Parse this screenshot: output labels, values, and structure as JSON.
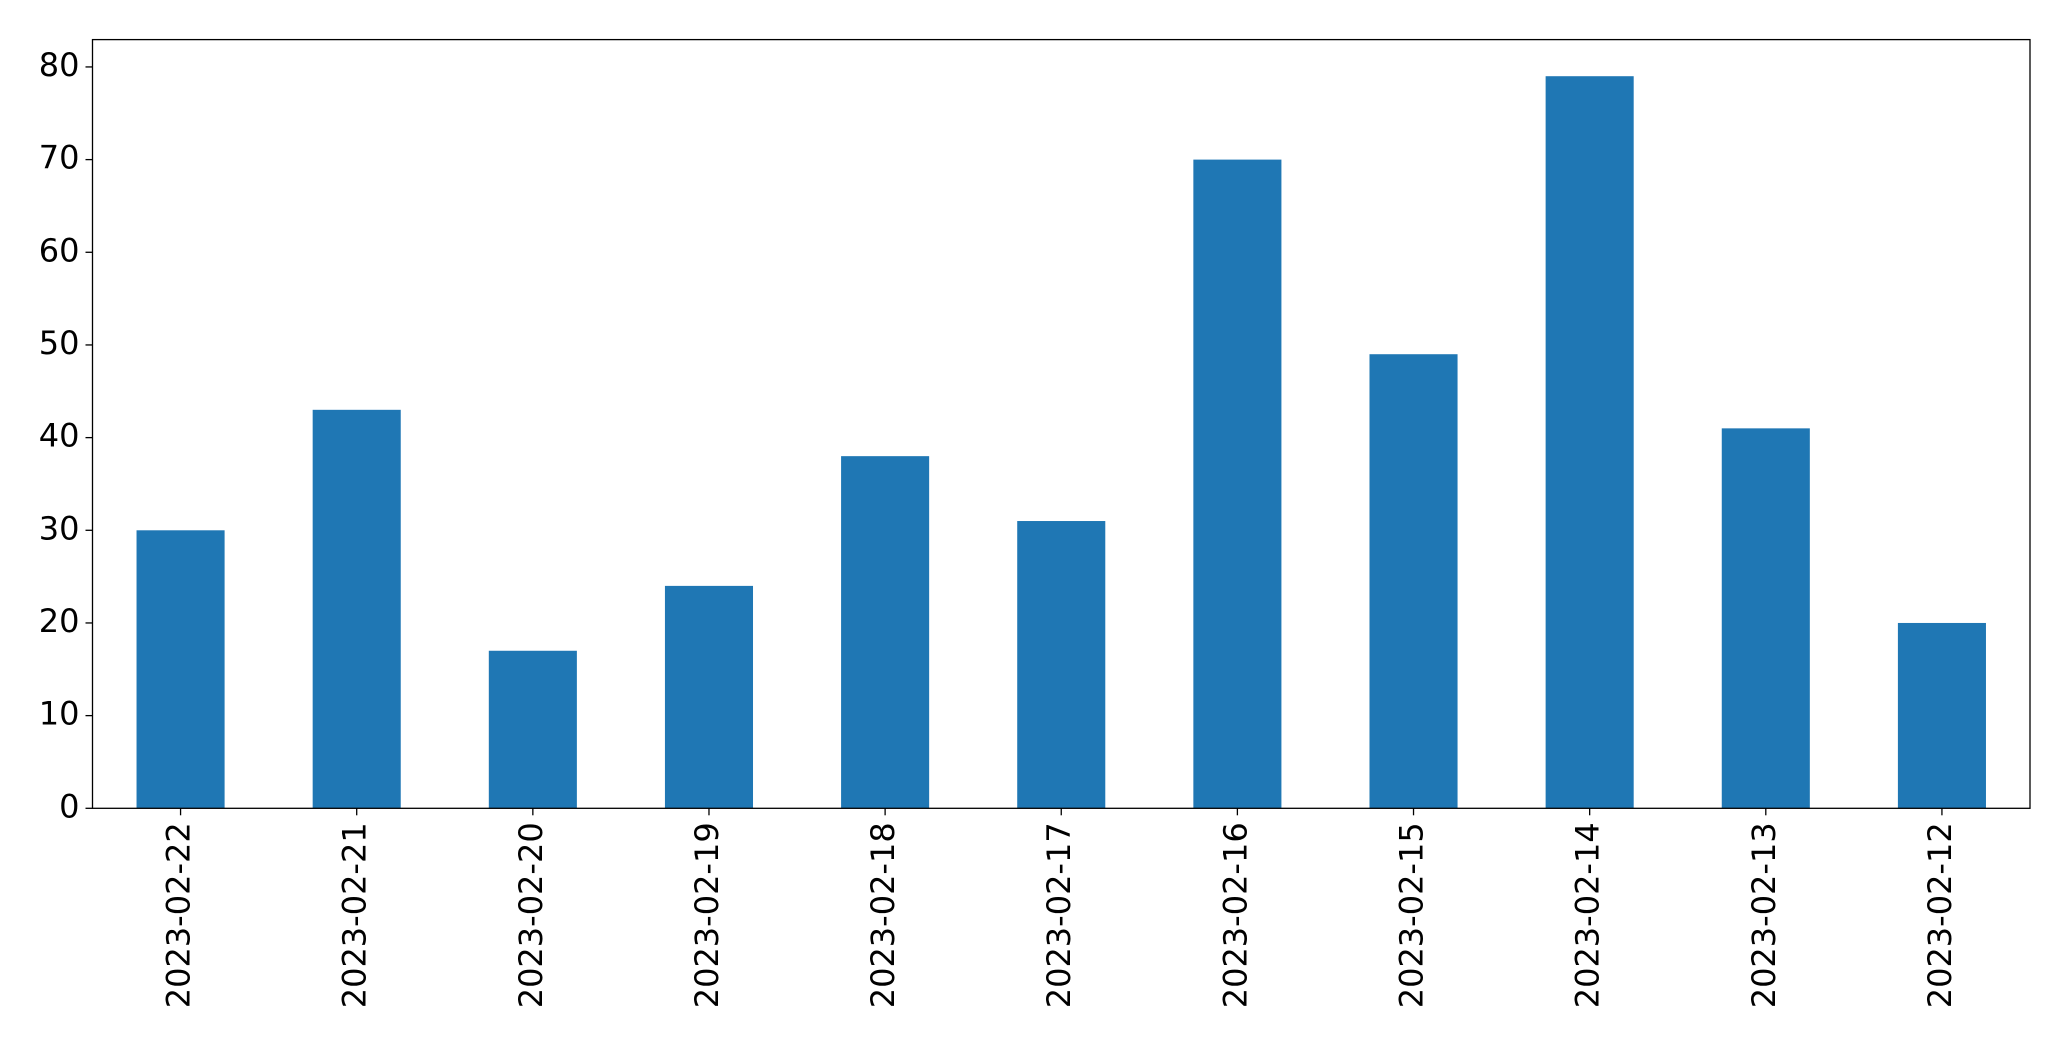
{
  "chart_data": {
    "type": "bar",
    "categories": [
      "2023-02-22",
      "2023-02-21",
      "2023-02-20",
      "2023-02-19",
      "2023-02-18",
      "2023-02-17",
      "2023-02-16",
      "2023-02-15",
      "2023-02-14",
      "2023-02-13",
      "2023-02-12"
    ],
    "values": [
      30,
      43,
      17,
      24,
      38,
      31,
      70,
      49,
      79,
      41,
      20
    ],
    "color": "#1f77b4",
    "ylim": [
      0,
      82.95
    ],
    "yticks": [
      0,
      10,
      20,
      30,
      40,
      50,
      60,
      70,
      80
    ],
    "grid": false
  }
}
